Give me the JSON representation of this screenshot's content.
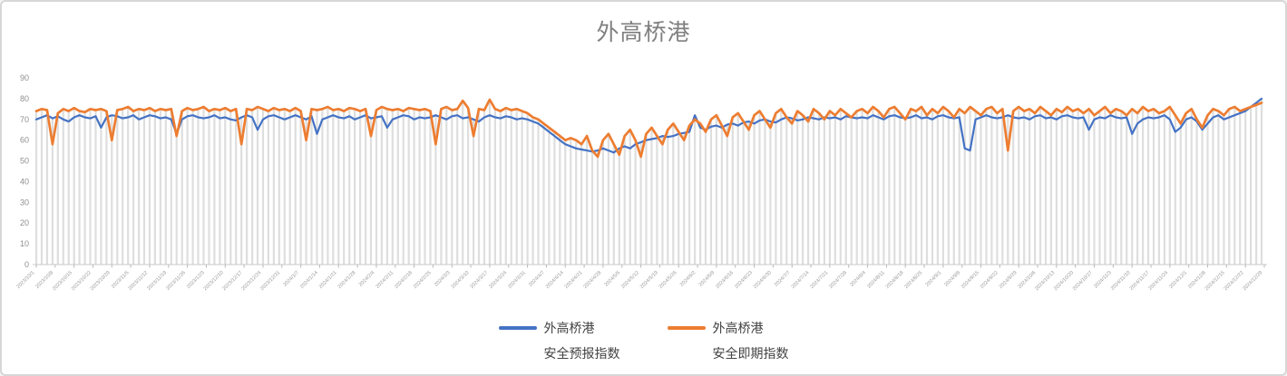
{
  "window": {
    "background": "#ffffff",
    "border_color": "#d7d7d7"
  },
  "chart_data": {
    "type": "line",
    "title": "外高桥港",
    "title_color": "#7f7f7f",
    "xlabel": "",
    "ylabel": "",
    "ylim": [
      0,
      90
    ],
    "y_ticks": [
      0,
      10,
      20,
      30,
      40,
      50,
      60,
      70,
      80,
      90
    ],
    "grid": "vertical-drop-lines-per-point",
    "legend_position": "bottom",
    "x_start_date": "2023/10/1",
    "x_point_step_days": 2,
    "x_tick_step_days": 7,
    "x_tick_labels": [
      "2023/10/1",
      "2023/10/8",
      "2023/10/15",
      "2023/10/22",
      "2023/10/29",
      "2023/11/5",
      "2023/11/12",
      "2023/11/19",
      "2023/11/26",
      "2023/12/3",
      "2023/12/10",
      "2023/12/17",
      "2023/12/24",
      "2023/12/31",
      "2024/1/7",
      "2024/1/14",
      "2024/1/21",
      "2024/1/28",
      "2024/2/4",
      "2024/2/11",
      "2024/2/18",
      "2024/2/25",
      "2024/3/3",
      "2024/3/10",
      "2024/3/17",
      "2024/3/24",
      "2024/3/31",
      "2024/4/7",
      "2024/4/14",
      "2024/4/21",
      "2024/4/28",
      "2024/5/5",
      "2024/5/12",
      "2024/5/19",
      "2024/5/26",
      "2024/6/2",
      "2024/6/9",
      "2024/6/16",
      "2024/6/23",
      "2024/6/30",
      "2024/7/7",
      "2024/7/14",
      "2024/7/21",
      "2024/7/28",
      "2024/8/4",
      "2024/8/11",
      "2024/8/18",
      "2024/8/25",
      "2024/9/1",
      "2024/9/8",
      "2024/9/15",
      "2024/9/22",
      "2024/9/29",
      "2024/10/6",
      "2024/10/13",
      "2024/10/20",
      "2024/10/27",
      "2024/11/3",
      "2024/11/10",
      "2024/11/17",
      "2024/11/24",
      "2024/12/1",
      "2024/12/8",
      "2024/12/15",
      "2024/12/22",
      "2024/12/29"
    ],
    "series": [
      {
        "name": "外高桥港 安全预报指数",
        "color": "#4472C4",
        "values": [
          70,
          71,
          72,
          70.5,
          71.5,
          70,
          69,
          71,
          72,
          71,
          70.5,
          71.5,
          66,
          71,
          72,
          71.5,
          70.5,
          71,
          72,
          70,
          71,
          72,
          71.5,
          70.5,
          71,
          70,
          63,
          70,
          71.5,
          72,
          71,
          70.5,
          71,
          72,
          70.5,
          71,
          70,
          69.5,
          71,
          72,
          71,
          65,
          70,
          71.5,
          72,
          71,
          70,
          71,
          72,
          71,
          70,
          71.5,
          63,
          70,
          71,
          72,
          71,
          70.5,
          71.5,
          70,
          71,
          72,
          70.5,
          71,
          71.5,
          66,
          70,
          71,
          72,
          71.5,
          70,
          71,
          70.5,
          71,
          72,
          71,
          70,
          71.5,
          72,
          70.5,
          71,
          70,
          69,
          71,
          72,
          71,
          70.5,
          71.5,
          71,
          70,
          70.5,
          70,
          69,
          68,
          66,
          64,
          62,
          60,
          58,
          57,
          56,
          55.5,
          55,
          54.5,
          55,
          56,
          55,
          54,
          56,
          57,
          56,
          58,
          59,
          60,
          60.5,
          61,
          62,
          61.5,
          62,
          63,
          63.5,
          64,
          72,
          66,
          65,
          66.5,
          67,
          66,
          67.5,
          68,
          67,
          68.5,
          69,
          68,
          69.5,
          70,
          69,
          68.5,
          70,
          71,
          70.5,
          69.5,
          70,
          71,
          70.5,
          70,
          71,
          70.5,
          71,
          70,
          71.5,
          71,
          70.5,
          71,
          70.5,
          72,
          71,
          70,
          71.5,
          72,
          71,
          70.5,
          71,
          72,
          70.5,
          71,
          70,
          71.5,
          72,
          71,
          70.5,
          71,
          56,
          55,
          70,
          71,
          72,
          71,
          70.5,
          71,
          72,
          71,
          70.5,
          71,
          70,
          71.5,
          72,
          70.5,
          71,
          70,
          71.5,
          72,
          71,
          70.5,
          71,
          65,
          70,
          71,
          70.5,
          72,
          71,
          70.5,
          71,
          63,
          68,
          70,
          71,
          70.5,
          71,
          72,
          70,
          64,
          66,
          70,
          71,
          69,
          65,
          68,
          71,
          72,
          70,
          71,
          72,
          73,
          74,
          76,
          78,
          80
        ]
      },
      {
        "name": "外高桥港 安全即期指数",
        "color": "#ED7D31",
        "values": [
          74,
          75,
          74.5,
          58,
          73,
          75,
          74,
          75.5,
          74,
          73.5,
          75,
          74.5,
          75,
          74,
          60,
          74.5,
          75,
          76,
          74,
          75,
          74.5,
          75.5,
          74,
          75,
          74.5,
          75,
          62,
          74,
          75.5,
          74.5,
          75,
          76,
          74,
          75,
          74.5,
          75.5,
          74,
          75,
          58,
          75,
          74.5,
          76,
          75,
          74,
          75.5,
          74.5,
          75,
          74,
          75.5,
          74,
          60,
          75,
          74.5,
          75,
          76,
          74.5,
          75,
          74,
          75.5,
          75,
          74,
          75,
          62,
          74.5,
          76,
          75,
          74.5,
          75,
          74,
          75.5,
          75,
          74.5,
          75,
          74,
          58,
          75,
          76,
          74.5,
          75,
          79,
          75.5,
          62,
          75,
          74.5,
          79.5,
          75,
          74,
          75.5,
          74.5,
          75,
          74,
          73,
          71,
          70,
          68,
          66,
          64,
          62,
          60,
          61,
          60,
          58,
          62,
          55,
          52,
          60,
          63,
          58,
          53,
          62,
          65,
          60,
          52,
          63,
          66,
          62,
          58,
          65,
          68,
          64,
          60,
          67,
          70,
          68,
          64,
          70,
          72,
          67,
          62,
          71,
          73,
          69,
          65,
          72,
          74,
          70,
          66,
          73,
          75,
          71,
          68,
          74,
          72,
          69,
          75,
          73,
          70,
          74,
          72,
          75,
          73,
          71,
          74,
          75,
          73,
          76,
          74,
          71,
          75,
          76,
          73,
          70,
          75,
          74,
          76,
          72,
          75,
          73,
          76,
          74,
          71,
          75,
          73,
          76,
          74,
          72,
          75,
          76,
          73,
          75,
          55,
          74,
          76,
          74,
          75,
          73,
          76,
          74,
          72,
          75,
          73.5,
          76,
          74,
          75,
          73,
          75,
          72,
          74,
          76,
          73,
          75,
          74,
          72,
          75,
          73,
          76,
          74,
          75,
          73,
          74,
          76,
          72,
          68,
          73,
          75,
          70,
          66,
          72,
          75,
          74,
          72,
          75,
          76,
          74,
          75,
          76,
          77,
          78
        ]
      }
    ]
  },
  "legend": {
    "items": [
      {
        "line1": "外高桥港",
        "line2": "安全预报指数",
        "color": "#4472C4"
      },
      {
        "line1": "外高桥港",
        "line2": "安全即期指数",
        "color": "#ED7D31"
      }
    ]
  }
}
